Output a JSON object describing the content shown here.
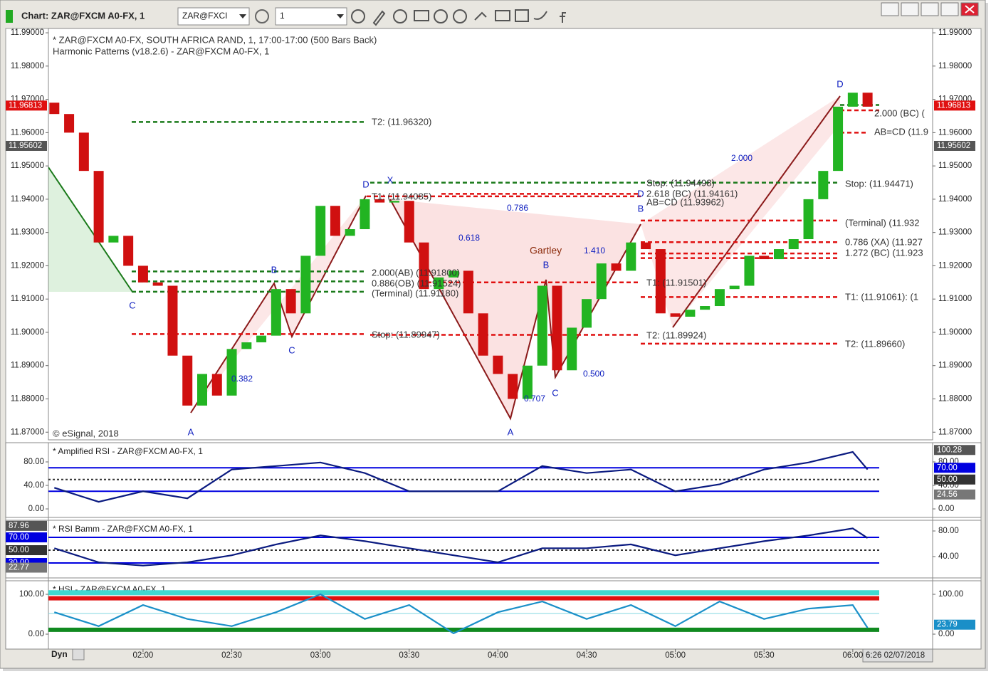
{
  "window": {
    "title": "Chart: ZAR@FXCM A0-FX, 1",
    "symbol": "ZAR@FXCI",
    "interval": "1",
    "footer_mode": "Dyn",
    "cursor_label": "6:26 02/07/2018"
  },
  "chart_data": [
    {
      "type": "candlestick",
      "annotations": [
        "* ZAR@FXCM A0-FX, SOUTH AFRICA RAND, 1, 17:00-17:00 (500 Bars Back)",
        "Harmonic Patterns (v18.2.6) - ZAR@FXCM A0-FX, 1",
        "© eSignal, 2018",
        "T2: (11.96320)",
        "2.000(AB) (11.91800)",
        "0.886(OB) (11.91524)",
        "(Terminal) (11.91180)",
        "Stop: (11.89947)",
        "T1: (11.94085)",
        "Stop: (11.94498)",
        "2.618 (BC) (11.94161)",
        "AB=CD (11.93962)",
        "T1: (11.91501)",
        "T2: (11.89924)",
        "Stop: (11.94471)",
        "(Terminal) (11.932",
        "0.786 (XA) (11.927",
        "1.272 (BC) (11.923",
        "T1: (11.91061): (1",
        "T2: (11.89660)",
        "2.000 (BC) (",
        "AB=CD (11.9",
        "Gartley",
        "C",
        "A",
        "B",
        "C",
        "D",
        "X",
        "A",
        "B",
        "C",
        "B",
        "D",
        "D",
        "0.382",
        "0.786",
        "0.618",
        "1.410",
        "0.707",
        "0.500",
        "2.000"
      ],
      "x": [
        "01:30",
        "01:35",
        "01:40",
        "01:45",
        "01:50",
        "01:55",
        "02:00",
        "02:05",
        "02:10",
        "02:15",
        "02:20",
        "02:25",
        "02:30",
        "02:35",
        "02:40",
        "02:45",
        "02:50",
        "02:55",
        "03:00",
        "03:05",
        "03:10",
        "03:15",
        "03:20",
        "03:25",
        "03:30",
        "03:35",
        "03:40",
        "03:45",
        "03:50",
        "03:55",
        "04:00",
        "04:05",
        "04:10",
        "04:15",
        "04:20",
        "04:25",
        "04:30",
        "04:35",
        "04:40",
        "04:45",
        "04:50",
        "04:55",
        "05:00",
        "05:05",
        "05:10",
        "05:15",
        "05:20",
        "05:25",
        "05:30",
        "05:35",
        "05:40",
        "05:45",
        "05:50",
        "05:55",
        "06:00",
        "06:05"
      ],
      "open": [
        11.969,
        11.9656,
        11.96,
        11.9485,
        11.927,
        11.929,
        11.92,
        11.915,
        11.914,
        11.893,
        11.878,
        11.8875,
        11.881,
        11.895,
        11.897,
        11.899,
        11.913,
        11.9057,
        11.923,
        11.938,
        11.929,
        11.931,
        11.94,
        11.939,
        11.9395,
        11.927,
        11.913,
        11.9165,
        11.9185,
        11.9057,
        11.893,
        11.8875,
        11.88,
        11.89,
        11.914,
        11.8886,
        11.9014,
        11.91,
        11.9207,
        11.9185,
        11.927,
        11.925,
        11.9057,
        11.9047,
        11.9068,
        11.9079,
        11.913,
        11.914,
        11.923,
        11.922,
        11.925,
        11.928,
        11.94,
        11.9485,
        11.9678,
        11.972
      ],
      "close": [
        11.9656,
        11.96,
        11.9485,
        11.927,
        11.929,
        11.92,
        11.915,
        11.914,
        11.893,
        11.878,
        11.8875,
        11.881,
        11.895,
        11.897,
        11.899,
        11.913,
        11.9057,
        11.923,
        11.938,
        11.929,
        11.931,
        11.94,
        11.939,
        11.9395,
        11.927,
        11.913,
        11.9165,
        11.9185,
        11.9057,
        11.893,
        11.8875,
        11.88,
        11.89,
        11.914,
        11.8886,
        11.9014,
        11.91,
        11.9207,
        11.9185,
        11.927,
        11.925,
        11.9057,
        11.9047,
        11.9068,
        11.9079,
        11.913,
        11.914,
        11.923,
        11.922,
        11.925,
        11.928,
        11.94,
        11.9485,
        11.9678,
        11.972,
        11.9678
      ],
      "up_color": "#22b422",
      "down_color": "#d01010",
      "xlim": [
        "01:28",
        "06:27"
      ],
      "xticks": [
        "02:00",
        "02:30",
        "03:00",
        "03:30",
        "04:00",
        "04:30",
        "05:00",
        "05:30",
        "06:00"
      ],
      "ylim": [
        11.8677,
        11.9913
      ],
      "yticks": [
        {
          "value": 11.87,
          "label": "11.87000"
        },
        {
          "value": 11.88,
          "label": "11.88000"
        },
        {
          "value": 11.89,
          "label": "11.89000"
        },
        {
          "value": 11.9,
          "label": "11.90000"
        },
        {
          "value": 11.91,
          "label": "11.91000"
        },
        {
          "value": 11.92,
          "label": "11.92000"
        },
        {
          "value": 11.93,
          "label": "11.93000"
        },
        {
          "value": 11.94,
          "label": "11.94000"
        },
        {
          "value": 11.95,
          "label": "11.95000"
        },
        {
          "value": 11.96,
          "label": "11.96000"
        },
        {
          "value": 11.97,
          "label": "11.97000"
        },
        {
          "value": 11.98,
          "label": "11.98000"
        },
        {
          "value": 11.99,
          "label": "11.99000"
        }
      ],
      "markers": [
        {
          "value": 11.95602,
          "color": "#555555"
        },
        {
          "value": 11.96813,
          "color": "#e01010"
        }
      ],
      "levels": [
        {
          "value": 11.9632,
          "color": "#1a7a1a"
        },
        {
          "value": 11.9183,
          "color": "#1a7a1a"
        },
        {
          "value": 11.9153,
          "color": "#1a7a1a"
        },
        {
          "value": 11.9122,
          "color": "#1a7a1a"
        },
        {
          "value": 11.89947,
          "color": "#e01010"
        },
        {
          "value": 11.94085,
          "color": "#e01010"
        },
        {
          "value": 11.915,
          "color": "#e01010"
        },
        {
          "value": 11.94498,
          "color": "#1a7a1a"
        },
        {
          "value": 11.94161,
          "color": "#e01010"
        },
        {
          "value": 11.9336,
          "color": "#e01010"
        },
        {
          "value": 11.9271,
          "color": "#e01010"
        },
        {
          "value": 11.9237,
          "color": "#e01010"
        },
        {
          "value": 11.9223,
          "color": "#e01010"
        },
        {
          "value": 11.91061,
          "color": "#e01010"
        },
        {
          "value": 11.89924,
          "color": "#e01010"
        },
        {
          "value": 11.8966,
          "color": "#e01010"
        },
        {
          "value": 11.9683,
          "color": "#1a7a1a"
        },
        {
          "value": 11.9667,
          "color": "#e01010"
        },
        {
          "value": 11.96,
          "color": "#e01010"
        }
      ]
    },
    {
      "type": "line",
      "title": "* Amplified RSI - ZAR@FXCM A0-FX, 1",
      "color": "#0a1a80",
      "x": [
        "01:30",
        "01:45",
        "02:00",
        "02:15",
        "02:30",
        "02:45",
        "03:00",
        "03:15",
        "03:30",
        "03:45",
        "04:00",
        "04:15",
        "04:30",
        "04:45",
        "05:00",
        "05:15",
        "05:30",
        "05:45",
        "06:00",
        "06:05"
      ],
      "values": [
        36,
        12,
        30,
        18,
        67,
        73,
        79,
        61,
        30,
        30,
        30,
        73,
        61,
        67,
        30,
        42,
        67,
        79,
        97,
        67
      ],
      "ylim": [
        -14.5,
        112.7
      ],
      "yticks": [
        {
          "value": 0,
          "label": "0.00"
        },
        {
          "value": 40,
          "label": "40.00"
        },
        {
          "value": 80,
          "label": "80.00"
        }
      ],
      "levels": [
        {
          "value": 70,
          "color": "#0000e0"
        },
        {
          "value": 50,
          "color": "#333333",
          "style": "dashed"
        },
        {
          "value": 30,
          "color": "#0000e0"
        }
      ],
      "markers": [
        {
          "value": 100.28,
          "color": "#555555"
        },
        {
          "value": 70,
          "label": "70.00",
          "color": "#0000e0"
        },
        {
          "value": 50,
          "label": "50.00",
          "color": "#333333"
        },
        {
          "value": 24.56,
          "color": "#777777"
        }
      ]
    },
    {
      "type": "line",
      "title": "* RSI Bamm - ZAR@FXCM A0-FX, 1",
      "color": "#0a1a80",
      "x": [
        "01:30",
        "01:45",
        "02:00",
        "02:15",
        "02:30",
        "02:45",
        "03:00",
        "03:15",
        "03:30",
        "03:45",
        "04:00",
        "04:15",
        "04:30",
        "04:45",
        "05:00",
        "05:15",
        "05:30",
        "05:45",
        "06:00",
        "06:05"
      ],
      "values": [
        53,
        31,
        26,
        31,
        42,
        59,
        73,
        64,
        53,
        42,
        31,
        53,
        53,
        59,
        42,
        53,
        64,
        73,
        84,
        69
      ],
      "ylim": [
        6.7,
        96.7
      ],
      "yticks": [
        {
          "value": 40,
          "label": "40.00"
        },
        {
          "value": 80,
          "label": "80.00"
        }
      ],
      "levels": [
        {
          "value": 70,
          "color": "#0000e0"
        },
        {
          "value": 50,
          "color": "#333333",
          "style": "dashed"
        },
        {
          "value": 30,
          "color": "#0000e0"
        }
      ],
      "markers": [
        {
          "value": 87.96,
          "color": "#555555"
        },
        {
          "value": 70,
          "label": "70.00",
          "color": "#0000e0"
        },
        {
          "value": 50,
          "label": "50.00",
          "color": "#333333"
        },
        {
          "value": 30,
          "label": "30.00",
          "color": "#0000e0"
        },
        {
          "value": 22.77,
          "color": "#777777"
        }
      ]
    },
    {
      "type": "line",
      "title": "* HSI - ZAR@FXCM A0-FX, 1",
      "color": "#1a8fc8",
      "x": [
        "01:30",
        "01:45",
        "02:00",
        "02:15",
        "02:30",
        "02:45",
        "03:00",
        "03:15",
        "03:30",
        "03:45",
        "04:00",
        "04:15",
        "04:30",
        "04:45",
        "05:00",
        "05:15",
        "05:30",
        "05:45",
        "06:00",
        "06:05"
      ],
      "values": [
        55,
        20,
        73,
        38,
        20,
        55,
        100,
        38,
        73,
        2,
        55,
        82,
        38,
        73,
        20,
        82,
        38,
        64,
        73,
        16
      ],
      "ylim": [
        -37.5,
        134
      ],
      "yticks": [
        {
          "value": 0,
          "label": "0.00"
        },
        {
          "value": 100,
          "label": "100.00"
        }
      ],
      "levels": [
        {
          "value": 104,
          "color": "#40d8d0",
          "width": 7
        },
        {
          "value": 90,
          "color": "#e01010",
          "width": 6
        },
        {
          "value": 52,
          "color": "#80d8e0",
          "width": 1
        },
        {
          "value": 11,
          "color": "#108a20",
          "width": 6
        }
      ],
      "markers": [
        {
          "value": 23.79,
          "color": "#1a8fc8"
        }
      ]
    }
  ]
}
